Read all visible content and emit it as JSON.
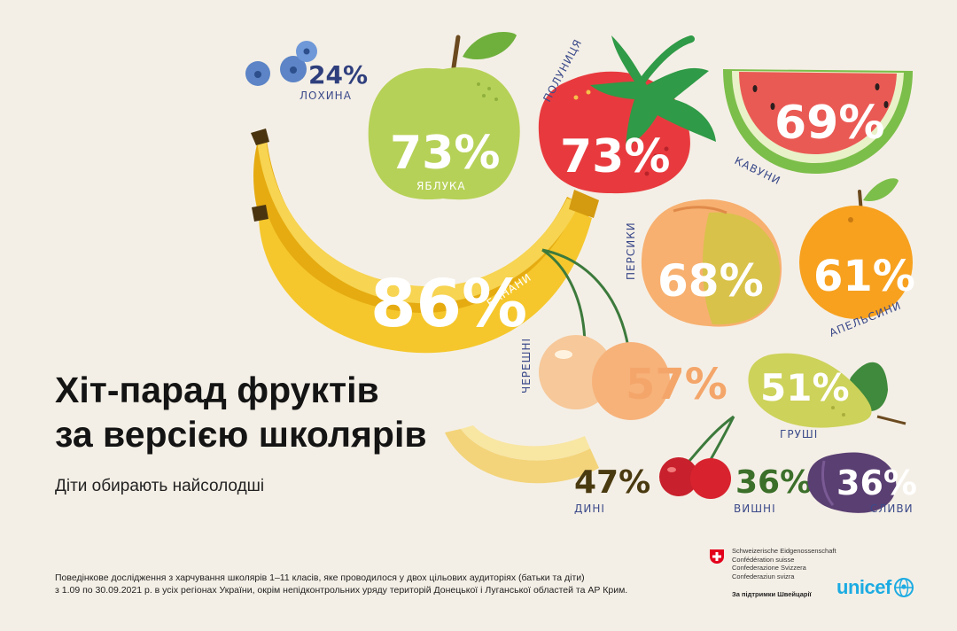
{
  "title": {
    "line1": "Хіт-парад фруктів",
    "line2": "за версією школярів"
  },
  "subtitle": "Діти обирають найсолодші",
  "fruits": {
    "blueberries": {
      "percent": "24%",
      "label": "ЛОХИНА",
      "value": 24
    },
    "apples": {
      "percent": "73%",
      "label": "ЯБЛУКА",
      "value": 73
    },
    "strawberries": {
      "percent": "73%",
      "label": "ПОЛУНИЦЯ",
      "value": 73
    },
    "watermelons": {
      "percent": "69%",
      "label": "КАВУНИ",
      "value": 69
    },
    "bananas": {
      "percent": "86%",
      "label": "БАНАНИ",
      "value": 86
    },
    "peaches": {
      "percent": "68%",
      "label": "ПЕРСИКИ",
      "value": 68
    },
    "oranges": {
      "percent": "61%",
      "label": "АПЕЛЬСИНИ",
      "value": 61
    },
    "sweet_cherries": {
      "percent": "57%",
      "label": "ЧЕРЕШНІ",
      "value": 57
    },
    "pears": {
      "percent": "51%",
      "label": "ГРУШІ",
      "value": 51
    },
    "melons": {
      "percent": "47%",
      "label": "ДИНІ",
      "value": 47
    },
    "sour_cherries": {
      "percent": "36%",
      "label": "ВИШНІ",
      "value": 36
    },
    "plums": {
      "percent": "36%",
      "label": "СЛИВИ",
      "value": 36
    }
  },
  "footnote": {
    "line1": "Поведінкове дослідження з харчування школярів 1–11 класів, яке проводилося у двох цільових аудиторіях (батьки та діти)",
    "line2": "з 1.09 по 30.09.2021 р. в усіх регіонах України, окрім непідконтрольних уряду територій Донецької і Луганської областей та АР Крим."
  },
  "swiss": {
    "line1": "Schweizerische Eidgenossenschaft",
    "line2": "Confédération suisse",
    "line3": "Confederazione Svizzera",
    "line4": "Confederaziun svizra",
    "support": "За підтримки Швейцарії",
    "flag_icon": "swiss-flag-icon"
  },
  "unicef": {
    "word": "unicef",
    "logo_icon": "unicef-globe-icon"
  },
  "colors": {
    "background": "#f4efe6",
    "label_text": "#3b4a8a",
    "banana": "#f5c72c",
    "apple": "#b6d157",
    "strawberry": "#e83a3e",
    "watermelon": "#ea5a54",
    "orange": "#f7a11f",
    "plum": "#5a3f72",
    "unicef_blue": "#1cabe2"
  }
}
